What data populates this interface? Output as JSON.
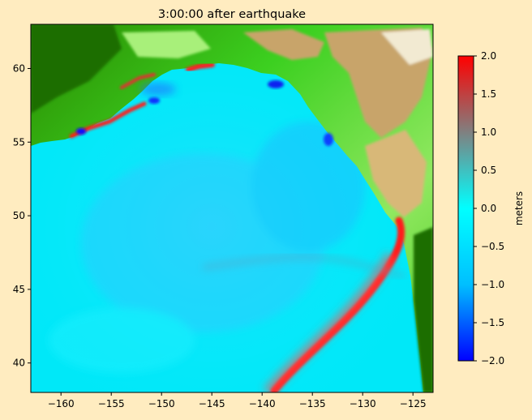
{
  "chart_data": {
    "type": "heatmap",
    "title": "3:00:00 after earthquake",
    "xlabel": "",
    "ylabel": "",
    "x_range": [
      -163,
      -123
    ],
    "y_range": [
      38,
      63
    ],
    "x_ticks": [
      -160,
      -155,
      -150,
      -145,
      -140,
      -135,
      -130,
      -125
    ],
    "y_ticks": [
      40,
      45,
      50,
      55,
      60
    ],
    "x_tick_labels": [
      "−160",
      "−155",
      "−150",
      "−145",
      "−140",
      "−135",
      "−130",
      "−125"
    ],
    "y_tick_labels": [
      "40",
      "45",
      "50",
      "55",
      "60"
    ],
    "grid": false,
    "colorbar": {
      "label": "meters",
      "range": [
        -2.0,
        2.0
      ],
      "ticks": [
        2.0,
        1.5,
        1.0,
        0.5,
        0.0,
        -0.5,
        -1.0,
        -1.5,
        -2.0
      ],
      "tick_labels": [
        "2.0",
        "1.5",
        "1.0",
        "0.5",
        "0.0",
        "−0.5",
        "−1.0",
        "−1.5",
        "−2.0"
      ],
      "colors": [
        "#0000ff",
        "#00bfff",
        "#00ffff",
        "#808080",
        "#ff0000"
      ]
    },
    "land_colors": [
      "#1a6e00",
      "#00e000",
      "#a8f07a",
      "#c8a46a",
      "#f2ead2"
    ],
    "ocean_color": "#00e8f8"
  }
}
